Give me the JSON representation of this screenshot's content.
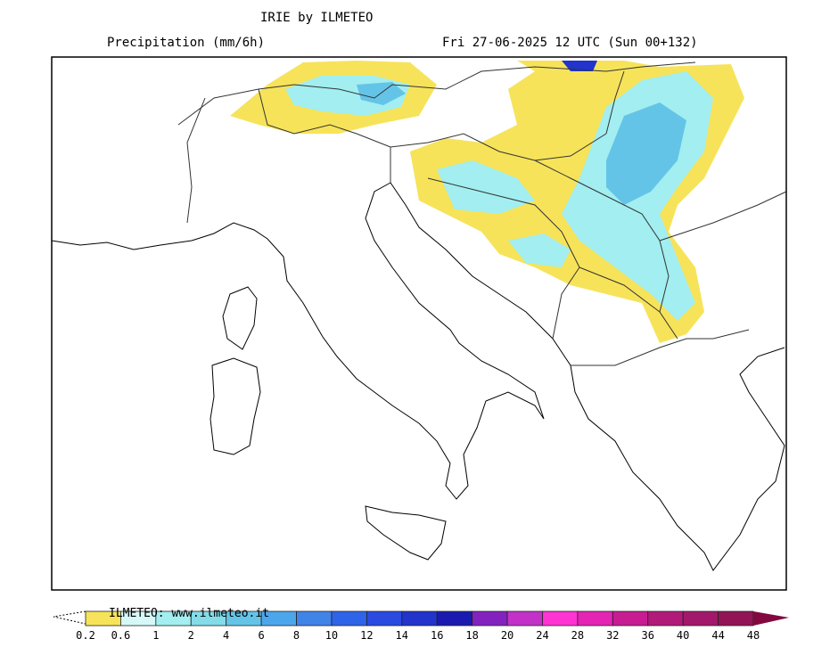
{
  "header": {
    "title": "IRIE by ILMETEO",
    "variable": "Precipitation (mm/6h)",
    "valid_time": "Fri 27-06-2025 12 UTC (Sun 00+132)"
  },
  "legend": {
    "watermark": "ILMETEO: www.ilmeteo.it",
    "labels": [
      "0.2",
      "0.6",
      "1",
      "2",
      "4",
      "6",
      "8",
      "10",
      "12",
      "14",
      "16",
      "18",
      "20",
      "24",
      "28",
      "32",
      "36",
      "40",
      "44",
      "48"
    ],
    "colors": [
      "#f6e35a",
      "#d6f8f8",
      "#a2eef0",
      "#84dce8",
      "#64c4e8",
      "#4ca6ec",
      "#4084e8",
      "#3064e8",
      "#2a4ae0",
      "#2234cc",
      "#1a1ab0",
      "#8422c0",
      "#c232c8",
      "#ff34d2",
      "#e424b4",
      "#c81c92",
      "#b21a7a",
      "#a2186a",
      "#921456"
    ],
    "overflow_color": "#82083e"
  },
  "map": {
    "region": "Italy and Balkans",
    "precip_colors": {
      "light": "#f6e35a",
      "low": "#d6f8f8",
      "mid": "#a2eef0",
      "high": "#84dce8",
      "heavy": "#64c4e8",
      "peak": "#2234cc"
    }
  }
}
